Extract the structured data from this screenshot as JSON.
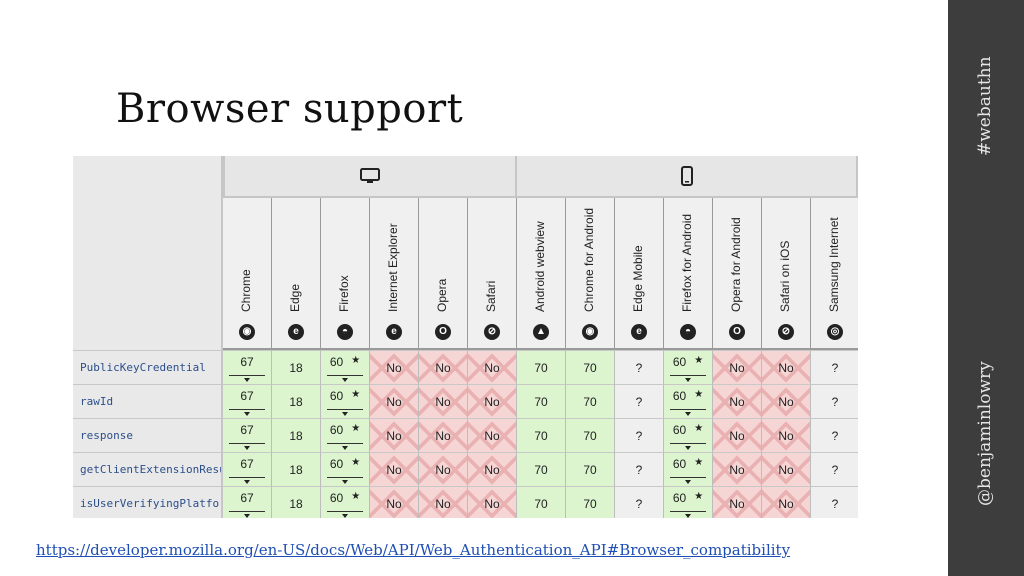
{
  "slide": {
    "title": "Browser support",
    "hashtag": "#webauthn",
    "handle": "@benjaminlowry",
    "link": "https://developer.mozilla.org/en-US/docs/Web/API/Web_Authentication_API#Browser_compatibility"
  },
  "compat_table": {
    "groups": [
      {
        "name": "desktop",
        "icon": "monitor-icon"
      },
      {
        "name": "mobile",
        "icon": "phone-icon"
      }
    ],
    "browsers": [
      {
        "name": "Chrome",
        "icon": "chrome-icon",
        "glyph": "◉"
      },
      {
        "name": "Edge",
        "icon": "edge-icon",
        "glyph": "e"
      },
      {
        "name": "Firefox",
        "icon": "firefox-icon",
        "glyph": "◓"
      },
      {
        "name": "Internet Explorer",
        "icon": "ie-icon",
        "glyph": "e"
      },
      {
        "name": "Opera",
        "icon": "opera-icon",
        "glyph": "O"
      },
      {
        "name": "Safari",
        "icon": "safari-icon",
        "glyph": "⊘"
      },
      {
        "name": "Android webview",
        "icon": "android-icon",
        "glyph": "▲"
      },
      {
        "name": "Chrome for Android",
        "icon": "chrome-icon",
        "glyph": "◉"
      },
      {
        "name": "Edge Mobile",
        "icon": "edge-icon",
        "glyph": "e"
      },
      {
        "name": "Firefox for Android",
        "icon": "firefox-icon",
        "glyph": "◓"
      },
      {
        "name": "Opera for Android",
        "icon": "opera-icon",
        "glyph": "O"
      },
      {
        "name": "Safari on iOS",
        "icon": "safari-icon",
        "glyph": "⊘"
      },
      {
        "name": "Samsung Internet",
        "icon": "samsung-icon",
        "glyph": "◎"
      }
    ],
    "rows": [
      {
        "feature": "PublicKeyCredential",
        "cells": [
          "67",
          "18",
          "60",
          "No",
          "No",
          "No",
          "70",
          "70",
          "?",
          "60",
          "No",
          "No",
          "?"
        ]
      },
      {
        "feature": "rawId",
        "cells": [
          "67",
          "18",
          "60",
          "No",
          "No",
          "No",
          "70",
          "70",
          "?",
          "60",
          "No",
          "No",
          "?"
        ]
      },
      {
        "feature": "response",
        "cells": [
          "67",
          "18",
          "60",
          "No",
          "No",
          "No",
          "70",
          "70",
          "?",
          "60",
          "No",
          "No",
          "?"
        ]
      },
      {
        "feature": "getClientExtensionResu",
        "cells": [
          "67",
          "18",
          "60",
          "No",
          "No",
          "No",
          "70",
          "70",
          "?",
          "60",
          "No",
          "No",
          "?"
        ]
      },
      {
        "feature": "isUserVerifyingPlatfor",
        "cells": [
          "67",
          "18",
          "60",
          "No",
          "No",
          "No",
          "70",
          "70",
          "?",
          "60",
          "No",
          "No",
          "?"
        ]
      }
    ],
    "flag_star": "★",
    "top_marks": "' . ' ,"
  },
  "colors": {
    "supported": "#dcf5cf",
    "unsupported": "#f6d5d5",
    "unknown": "#efefef",
    "sidebar": "#3d3d3d",
    "link": "#1f4fb4"
  }
}
